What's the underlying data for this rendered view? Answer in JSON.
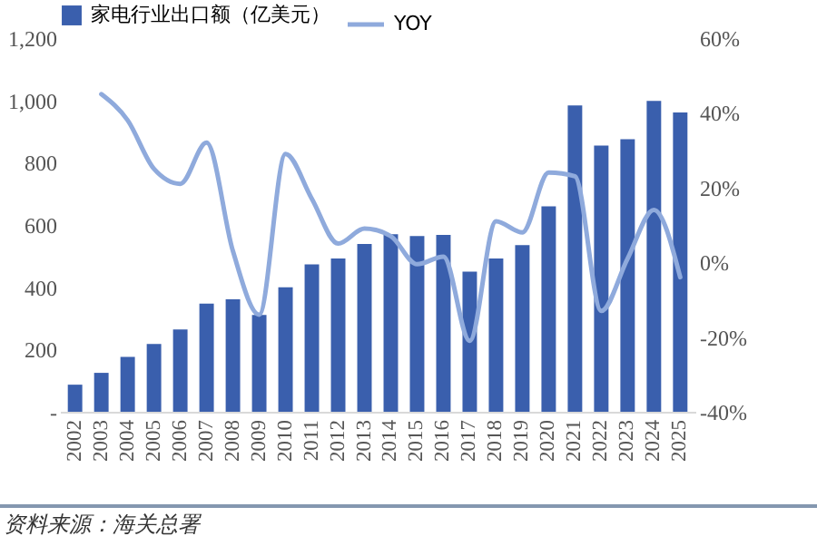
{
  "chart_data": {
    "type": "bar",
    "categories": [
      "2002",
      "2003",
      "2004",
      "2005",
      "2006",
      "2007",
      "2008",
      "2009",
      "2010",
      "2011",
      "2012",
      "2013",
      "2014",
      "2015",
      "2016",
      "2017",
      "2018",
      "2019",
      "2020",
      "2021",
      "2022",
      "2023",
      "2024",
      "2025"
    ],
    "series": [
      {
        "name": "家电行业出口额（亿美元）",
        "color": "#3a5fad",
        "values": [
          87,
          125,
          176,
          218,
          264,
          347,
          361,
          311,
          400,
          473,
          492,
          539,
          570,
          564,
          568,
          450,
          492,
          535,
          660,
          984,
          855,
          875,
          998,
          961
        ]
      },
      {
        "name": "YOY",
        "type": "line",
        "axis": "y2",
        "color": "#8faadc",
        "values": [
          null,
          45,
          38,
          25,
          21,
          32,
          3,
          -14,
          29,
          17,
          5,
          9,
          7,
          -0.5,
          1.5,
          -21,
          11,
          8,
          24,
          23,
          -13,
          1,
          14,
          -4
        ]
      }
    ],
    "ylim": [
      0,
      1200
    ],
    "yticks": [
      {
        "value": 0,
        "label": "-"
      },
      {
        "value": 200,
        "label": "200"
      },
      {
        "value": 400,
        "label": "400"
      },
      {
        "value": 600,
        "label": "600"
      },
      {
        "value": 800,
        "label": "800"
      },
      {
        "value": 1000,
        "label": "1,000"
      },
      {
        "value": 1200,
        "label": "1,200"
      }
    ],
    "y2lim": [
      -40,
      60
    ],
    "y2ticks": [
      {
        "value": -40,
        "label": "-40%"
      },
      {
        "value": -20,
        "label": "-20%"
      },
      {
        "value": 0,
        "label": "0%"
      },
      {
        "value": 20,
        "label": "20%"
      },
      {
        "value": 40,
        "label": "40%"
      },
      {
        "value": 60,
        "label": "60%"
      }
    ],
    "legend": "top",
    "grid": false,
    "marker": "none",
    "annotations": [
      "资料来源：海关总署"
    ]
  }
}
